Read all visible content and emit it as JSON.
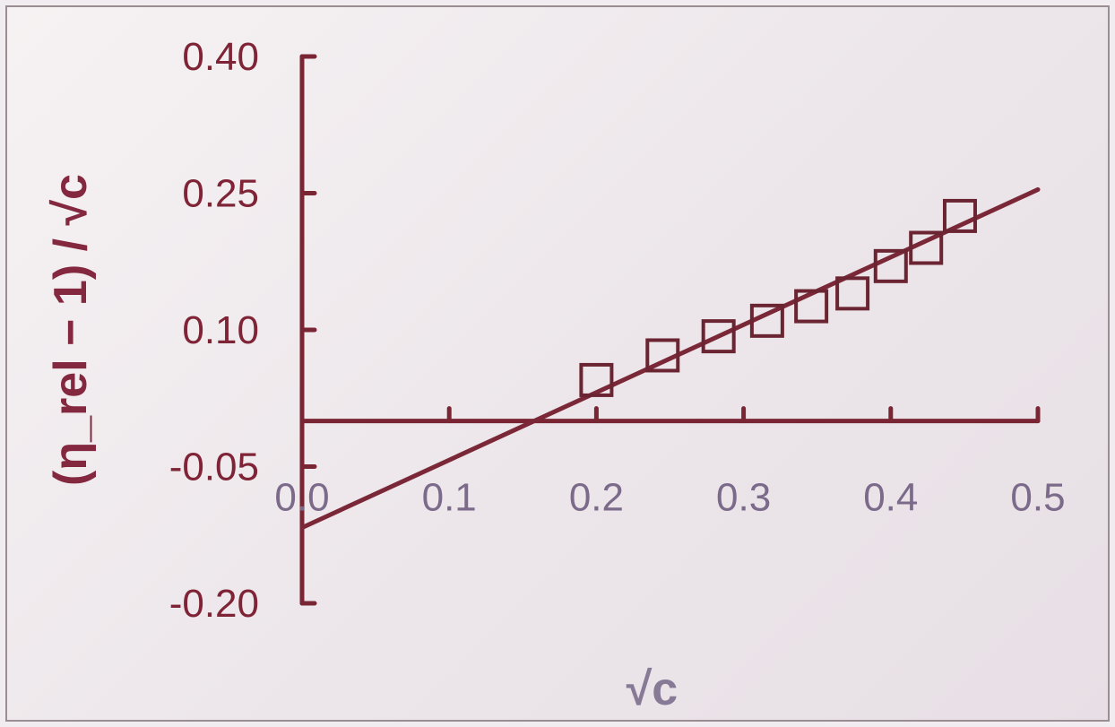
{
  "chart_data": {
    "type": "scatter",
    "xlabel": "√c",
    "ylabel": "(η_rel − 1) / √c",
    "xlim": [
      0.0,
      0.5
    ],
    "ylim": [
      -0.2,
      0.4
    ],
    "grid": false,
    "x_ticks": [
      {
        "value": 0.0,
        "label": "0.0"
      },
      {
        "value": 0.1,
        "label": "0.1"
      },
      {
        "value": 0.2,
        "label": "0.2"
      },
      {
        "value": 0.3,
        "label": "0.3"
      },
      {
        "value": 0.4,
        "label": "0.4"
      },
      {
        "value": 0.5,
        "label": "0.5"
      }
    ],
    "y_ticks": [
      {
        "value": 0.4,
        "label": "0.40"
      },
      {
        "value": 0.25,
        "label": "0.25"
      },
      {
        "value": 0.1,
        "label": "0.10"
      },
      {
        "value": -0.05,
        "label": "-0.05"
      },
      {
        "value": -0.2,
        "label": "-0.20"
      }
    ],
    "x_axis_at_y": 0.0,
    "points": [
      {
        "x": 0.2,
        "y": 0.045
      },
      {
        "x": 0.245,
        "y": 0.072
      },
      {
        "x": 0.283,
        "y": 0.093
      },
      {
        "x": 0.316,
        "y": 0.11
      },
      {
        "x": 0.346,
        "y": 0.126
      },
      {
        "x": 0.374,
        "y": 0.14
      },
      {
        "x": 0.4,
        "y": 0.17
      },
      {
        "x": 0.424,
        "y": 0.19
      },
      {
        "x": 0.447,
        "y": 0.225
      }
    ],
    "fit_line": {
      "x": [
        0.0,
        0.5
      ],
      "y": [
        -0.117,
        0.254
      ]
    },
    "colors": {
      "axis": "#7a2533",
      "fit_line": "#7a2838",
      "markers": "#6b2431",
      "y_tick_labels": "#7e2436",
      "x_tick_labels": "#7b6a8a",
      "ylabel": "#83283f",
      "xlabel": "#867a96"
    }
  }
}
